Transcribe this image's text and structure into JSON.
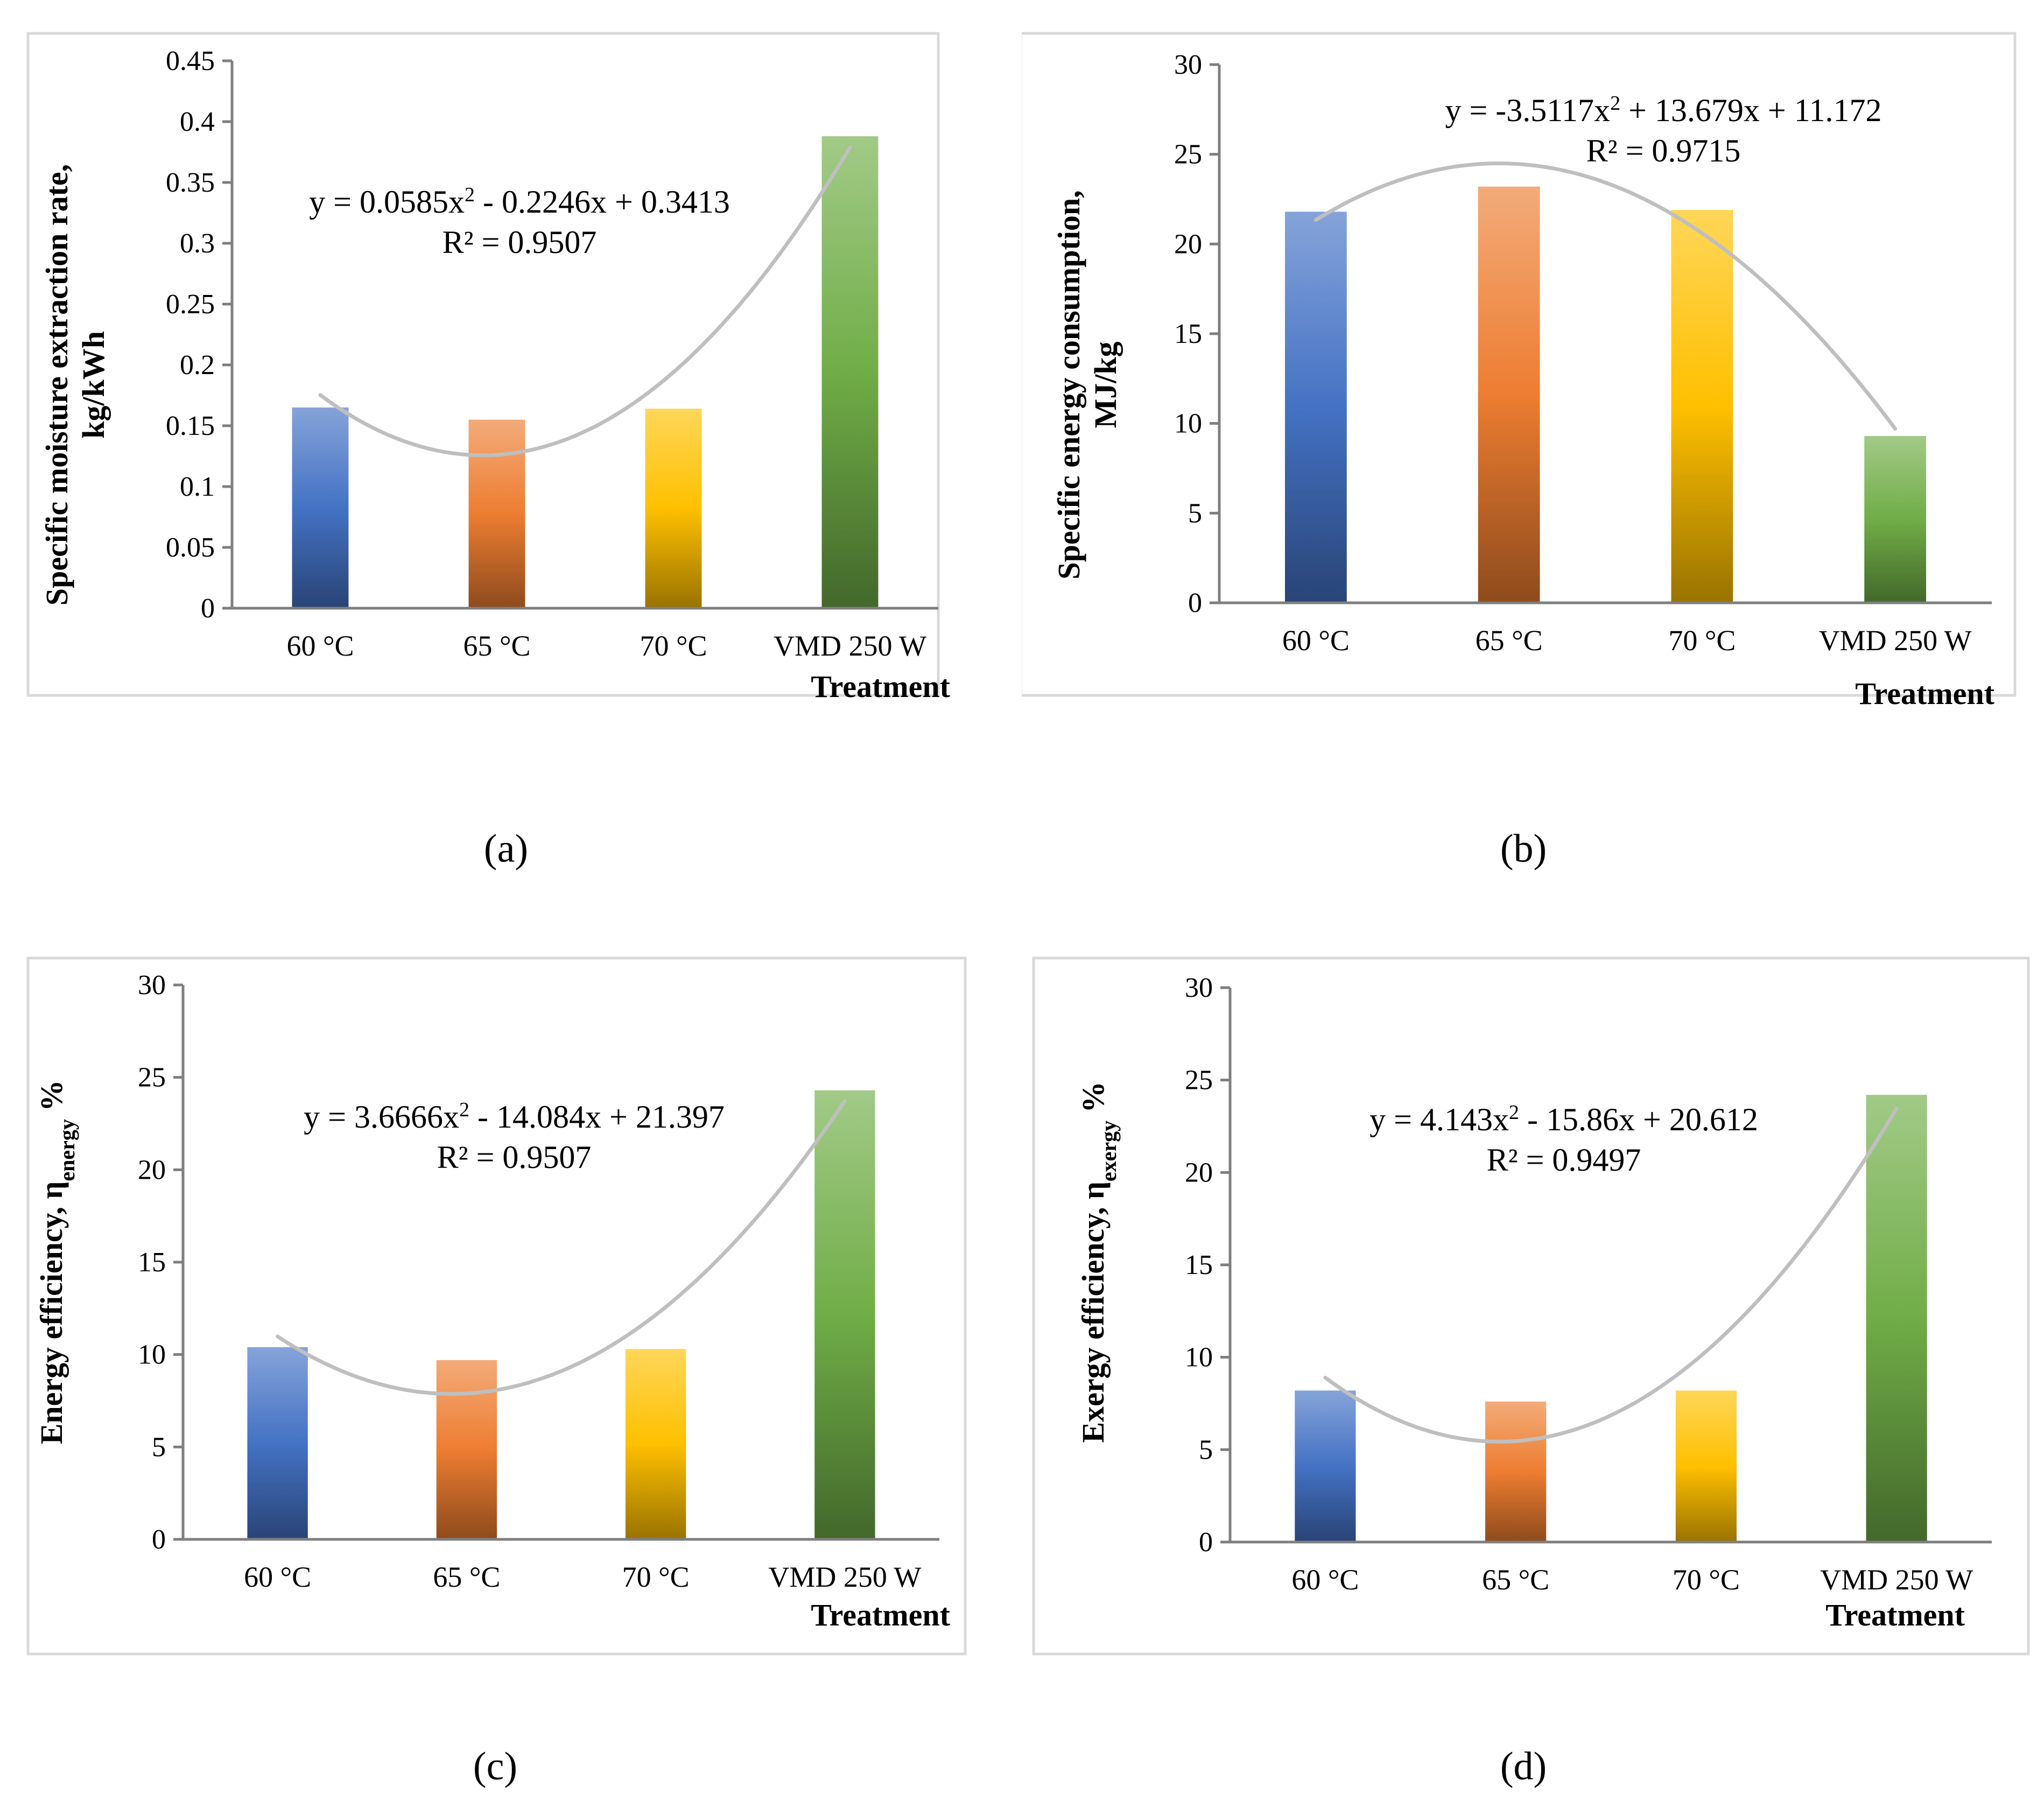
{
  "chart_data": [
    {
      "id": "a",
      "type": "bar",
      "caption": "(a)",
      "categories": [
        "60 °C",
        "65 °C",
        "70 °C",
        "VMD 250 W"
      ],
      "values": [
        0.165,
        0.155,
        0.164,
        0.388
      ],
      "ylabel_line1": "Specific moisture extraction rate,",
      "ylabel_line2": "kg/kWh",
      "xlabel": "Treatment",
      "ylim": [
        0,
        0.45
      ],
      "yticks": [
        0,
        0.05,
        0.1,
        0.15,
        0.2,
        0.25,
        0.3,
        0.35,
        0.4,
        0.45
      ],
      "ytick_labels": [
        "0",
        "0.05",
        "0.1",
        "0.15",
        "0.2",
        "0.25",
        "0.3",
        "0.35",
        "0.4",
        "0.45"
      ],
      "trendline": {
        "a": 0.0585,
        "b": -0.2246,
        "c": 0.3413
      },
      "equation_parts": [
        "y = 0.0585x",
        "2",
        " - 0.2246x + 0.3413"
      ],
      "r2": "R² = 0.9507",
      "series_colors": [
        "#4472c4",
        "#ed7d31",
        "#ffc000",
        "#70ad47"
      ]
    },
    {
      "id": "b",
      "type": "bar",
      "caption": "(b)",
      "categories": [
        "60 °C",
        "65 °C",
        "70 °C",
        "VMD 250 W"
      ],
      "values": [
        21.8,
        23.2,
        21.9,
        9.3
      ],
      "ylabel_line1": "Specific energy consumption,",
      "ylabel_line2": "MJ/kg",
      "xlabel": "Treatment",
      "ylim": [
        0,
        30
      ],
      "yticks": [
        0,
        5,
        10,
        15,
        20,
        25,
        30
      ],
      "ytick_labels": [
        "0",
        "5",
        "10",
        "15",
        "20",
        "25",
        "30"
      ],
      "trendline": {
        "a": -3.5117,
        "b": 13.679,
        "c": 11.172
      },
      "equation_parts": [
        "y = -3.5117x",
        "2",
        " + 13.679x + 11.172"
      ],
      "r2": "R² = 0.9715",
      "series_colors": [
        "#4472c4",
        "#ed7d31",
        "#ffc000",
        "#70ad47"
      ]
    },
    {
      "id": "c",
      "type": "bar",
      "caption": "(c)",
      "categories": [
        "60 °C",
        "65 °C",
        "70 °C",
        "VMD 250 W"
      ],
      "values": [
        10.4,
        9.7,
        10.3,
        24.3
      ],
      "ylabel_main": "Energy efficiency, η",
      "ylabel_sub": "energy",
      "ylabel_tail": " %",
      "xlabel": "Treatment",
      "ylim": [
        0,
        30
      ],
      "yticks": [
        0,
        5,
        10,
        15,
        20,
        25,
        30
      ],
      "ytick_labels": [
        "0",
        "5",
        "10",
        "15",
        "20",
        "25",
        "30"
      ],
      "trendline": {
        "a": 3.6666,
        "b": -14.084,
        "c": 21.397
      },
      "equation_parts": [
        "y = 3.6666x",
        "2",
        " - 14.084x + 21.397"
      ],
      "r2": "R² = 0.9507",
      "series_colors": [
        "#4472c4",
        "#ed7d31",
        "#ffc000",
        "#70ad47"
      ]
    },
    {
      "id": "d",
      "type": "bar",
      "caption": "(d)",
      "categories": [
        "60 °C",
        "65 °C",
        "70 °C",
        "VMD 250 W"
      ],
      "values": [
        8.2,
        7.6,
        8.2,
        24.2
      ],
      "ylabel_main": "Exergy efficiency, η",
      "ylabel_sub": "exergy",
      "ylabel_tail": " %",
      "xlabel": "Treatment",
      "ylim": [
        0,
        30
      ],
      "yticks": [
        0,
        5,
        10,
        15,
        20,
        25,
        30
      ],
      "ytick_labels": [
        "0",
        "5",
        "10",
        "15",
        "20",
        "25",
        "30"
      ],
      "trendline": {
        "a": 4.143,
        "b": -15.86,
        "c": 20.612
      },
      "equation_parts": [
        "y = 4.143x",
        "2",
        " - 15.86x + 20.612"
      ],
      "r2": "R² = 0.9497",
      "series_colors": [
        "#4472c4",
        "#ed7d31",
        "#ffc000",
        "#70ad47"
      ]
    }
  ]
}
